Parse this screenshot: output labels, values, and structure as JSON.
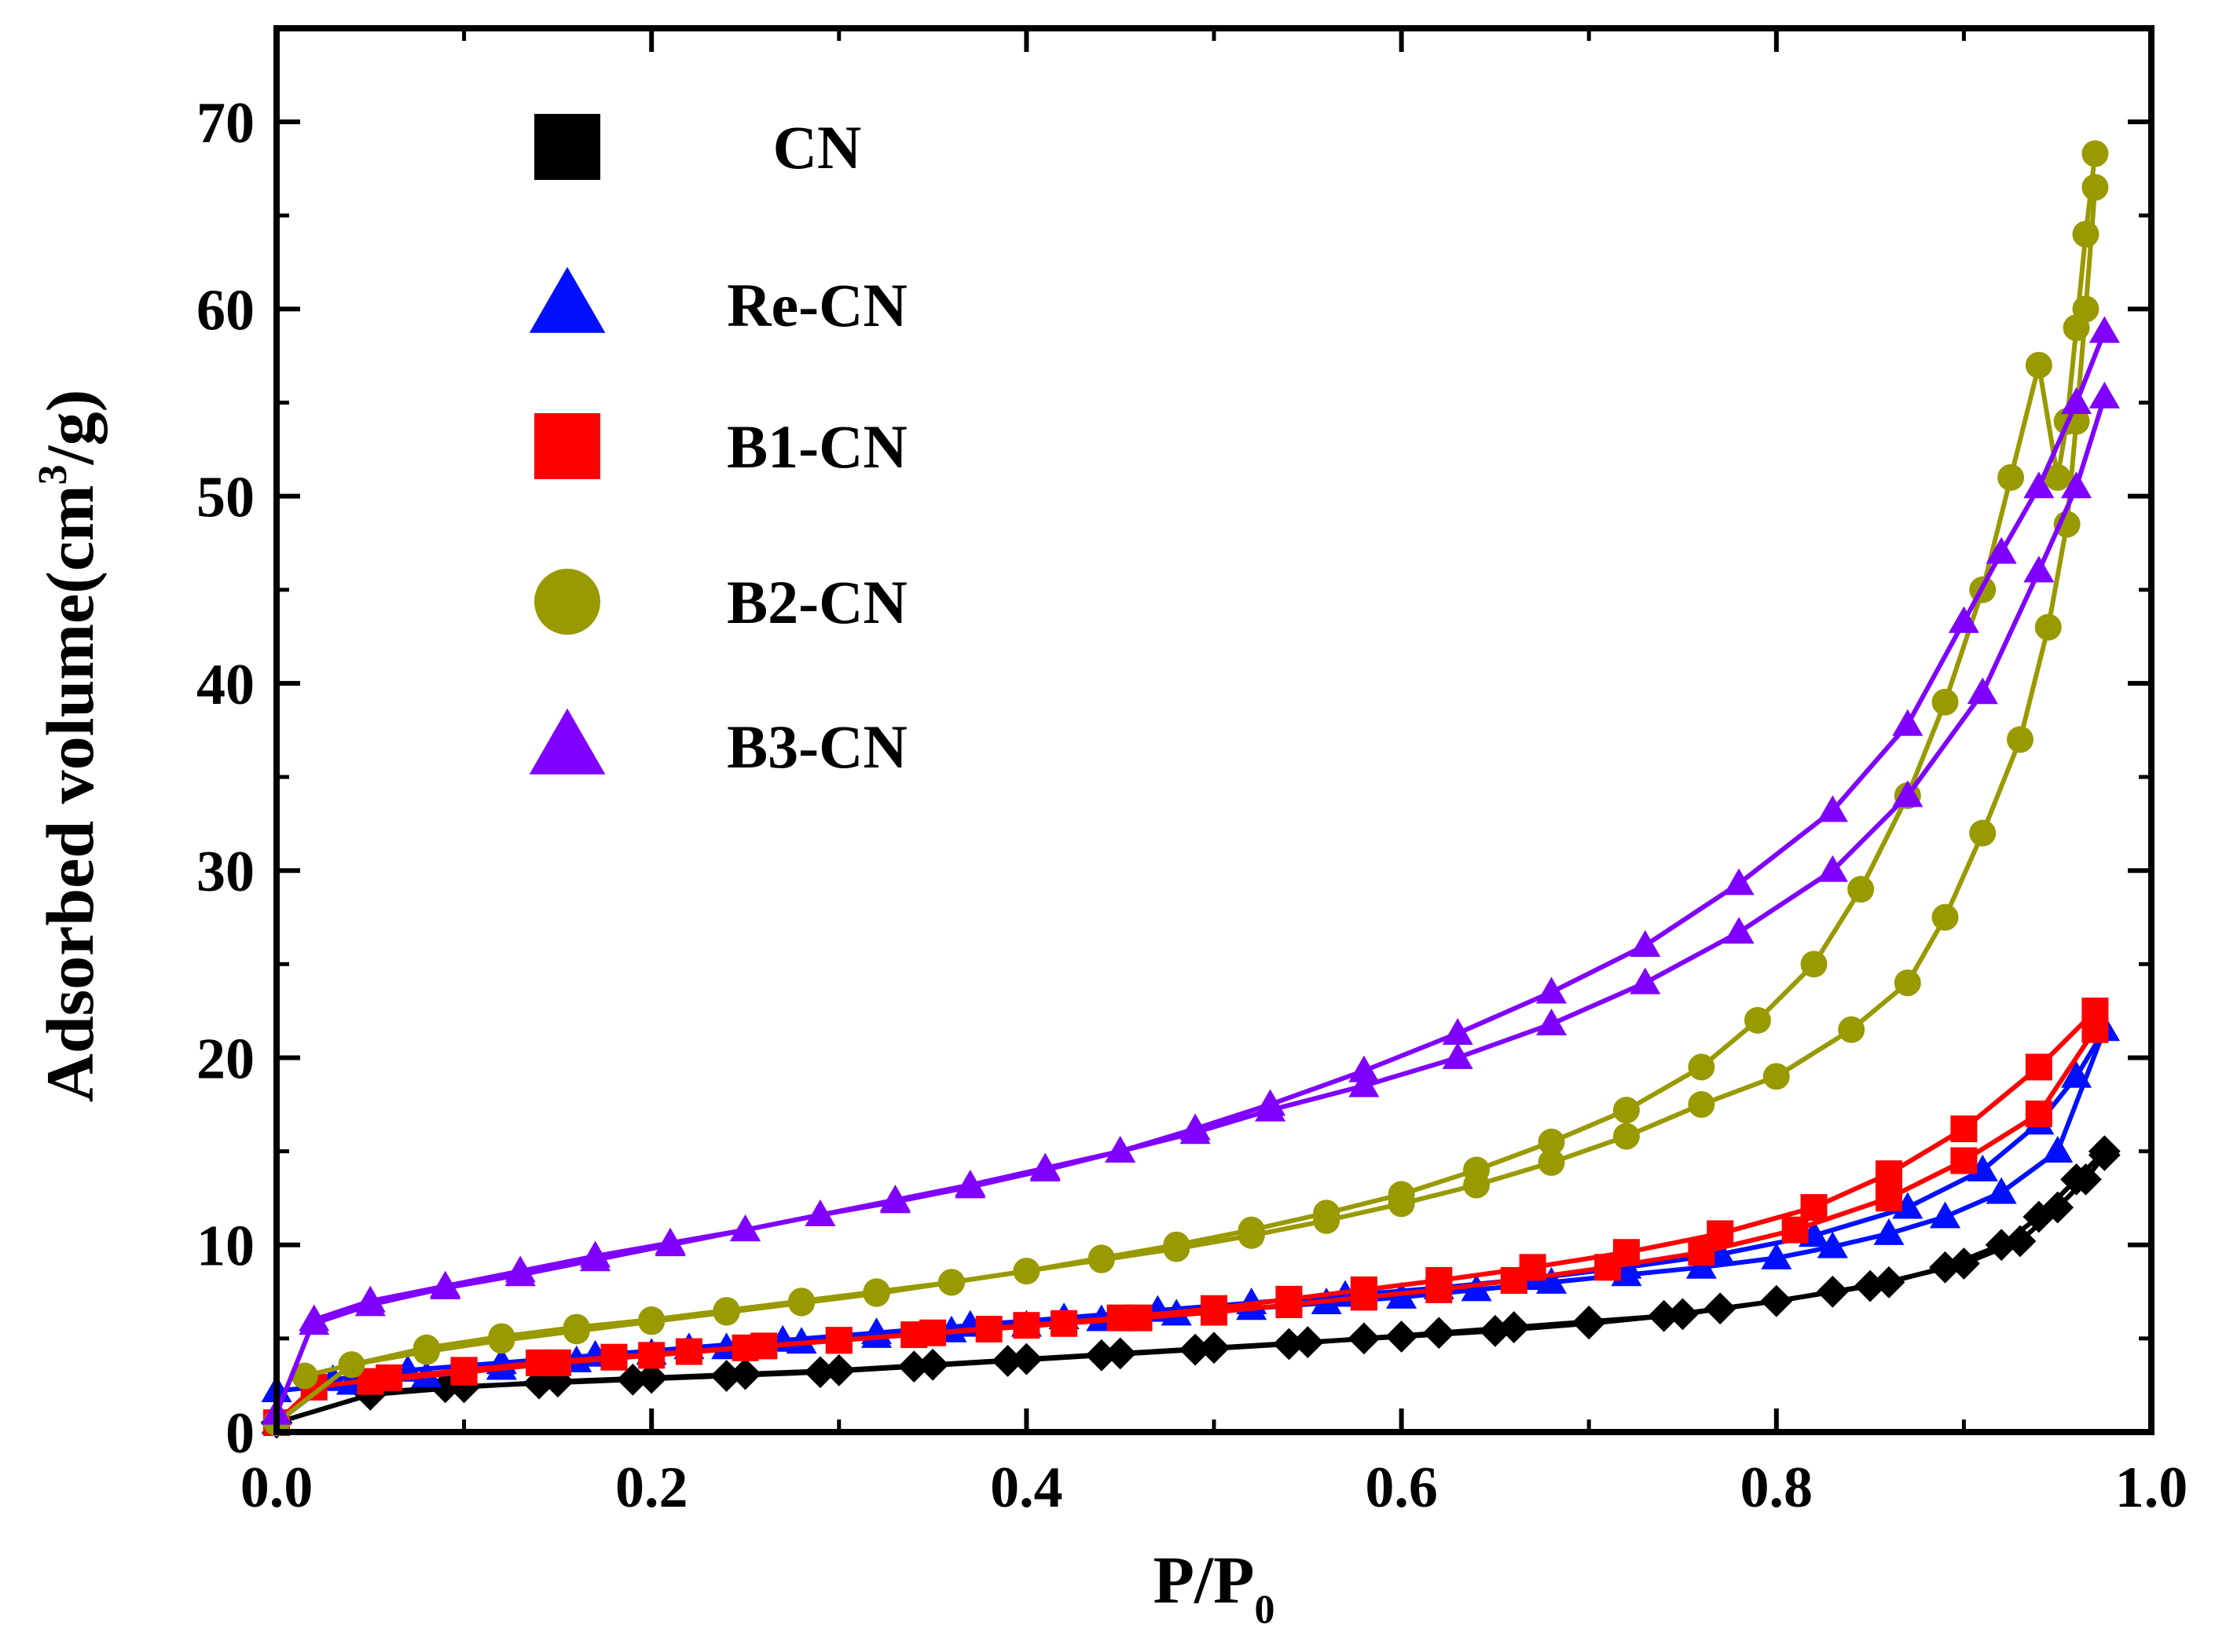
{
  "chart_data": {
    "type": "line",
    "title": "",
    "xlabel": "P/P",
    "xlabel_sub": "0",
    "ylabel": "Adsorbed volume(cm",
    "ylabel_sup": "3",
    "ylabel_tail": "/g)",
    "xlim": [
      0.0,
      1.0
    ],
    "ylim": [
      0,
      75
    ],
    "xticks": [
      0.0,
      0.2,
      0.4,
      0.6,
      0.8,
      1.0
    ],
    "xtick_labels": [
      "0.0",
      "0.2",
      "0.4",
      "0.6",
      "0.8",
      "1.0"
    ],
    "yticks": [
      0,
      10,
      20,
      30,
      40,
      50,
      60,
      70
    ],
    "ytick_labels": [
      "0",
      "10",
      "20",
      "30",
      "40",
      "50",
      "60",
      "70"
    ],
    "legend_position": "top-left",
    "series": [
      {
        "name": "CN",
        "color": "#000000",
        "marker": "diamond",
        "legend_marker": "square",
        "adsorption": {
          "x": [
            0.0,
            0.05,
            0.1,
            0.15,
            0.2,
            0.25,
            0.3,
            0.35,
            0.4,
            0.45,
            0.5,
            0.55,
            0.6,
            0.65,
            0.7,
            0.75,
            0.8,
            0.85,
            0.9,
            0.93,
            0.95,
            0.965,
            0.975
          ],
          "y": [
            0.5,
            2.0,
            2.4,
            2.7,
            2.9,
            3.1,
            3.3,
            3.6,
            3.9,
            4.2,
            4.5,
            4.8,
            5.1,
            5.4,
            5.8,
            6.3,
            7.0,
            7.8,
            9.0,
            10.2,
            12.0,
            13.5,
            14.8
          ]
        },
        "desorption": {
          "x": [
            0.975,
            0.96,
            0.94,
            0.92,
            0.89,
            0.86,
            0.83,
            0.8,
            0.77,
            0.74,
            0.7,
            0.66,
            0.62,
            0.58,
            0.54,
            0.49,
            0.44,
            0.39,
            0.34,
            0.29,
            0.24,
            0.19,
            0.14,
            0.09,
            0.05
          ],
          "y": [
            15.0,
            13.5,
            11.5,
            10.0,
            8.8,
            8.0,
            7.5,
            7.0,
            6.6,
            6.2,
            5.9,
            5.6,
            5.3,
            5.0,
            4.7,
            4.4,
            4.1,
            3.8,
            3.5,
            3.2,
            3.0,
            2.8,
            2.6,
            2.4,
            2.1
          ]
        }
      },
      {
        "name": "Re-CN",
        "color": "#0010ff",
        "marker": "triangle-up",
        "legend_marker": "triangle-up",
        "adsorption": {
          "x": [
            0.0,
            0.03,
            0.07,
            0.12,
            0.17,
            0.22,
            0.27,
            0.32,
            0.37,
            0.42,
            0.47,
            0.52,
            0.57,
            0.62,
            0.67,
            0.72,
            0.77,
            0.82,
            0.87,
            0.91,
            0.94,
            0.96,
            0.975
          ],
          "y": [
            0.5,
            2.8,
            3.3,
            3.7,
            4.1,
            4.5,
            4.9,
            5.3,
            5.7,
            6.1,
            6.5,
            6.9,
            7.3,
            7.7,
            8.2,
            8.8,
            9.5,
            10.5,
            12.0,
            14.0,
            16.5,
            19.0,
            21.5
          ]
        },
        "desorption": {
          "x": [
            0.975,
            0.95,
            0.92,
            0.89,
            0.86,
            0.83,
            0.8,
            0.76,
            0.72,
            0.68,
            0.64,
            0.6,
            0.56,
            0.52,
            0.48,
            0.44,
            0.4,
            0.36,
            0.32,
            0.28,
            0.24,
            0.2,
            0.16,
            0.12,
            0.08,
            0.04,
            0.0
          ],
          "y": [
            21.5,
            15.0,
            12.8,
            11.5,
            10.6,
            9.9,
            9.3,
            8.8,
            8.4,
            8.0,
            7.6,
            7.2,
            6.9,
            6.6,
            6.3,
            6.0,
            5.7,
            5.4,
            5.1,
            4.8,
            4.5,
            4.2,
            3.8,
            3.4,
            3.0,
            2.6,
            2.2
          ]
        }
      },
      {
        "name": "B1-CN",
        "color": "#ff0000",
        "marker": "square",
        "legend_marker": "square",
        "adsorption": {
          "x": [
            0.0,
            0.02,
            0.06,
            0.1,
            0.14,
            0.18,
            0.22,
            0.26,
            0.3,
            0.34,
            0.38,
            0.42,
            0.46,
            0.5,
            0.54,
            0.58,
            0.62,
            0.66,
            0.71,
            0.76,
            0.81,
            0.86,
            0.9,
            0.94,
            0.97
          ],
          "y": [
            0.5,
            2.4,
            2.9,
            3.3,
            3.7,
            4.0,
            4.3,
            4.6,
            4.9,
            5.2,
            5.5,
            5.8,
            6.1,
            6.4,
            6.8,
            7.2,
            7.6,
            8.1,
            8.8,
            9.6,
            10.8,
            12.5,
            14.5,
            17.0,
            21.5
          ]
        },
        "desorption": {
          "x": [
            0.97,
            0.94,
            0.9,
            0.86,
            0.82,
            0.77,
            0.72,
            0.67,
            0.62,
            0.58,
            0.54,
            0.5,
            0.45,
            0.4,
            0.35,
            0.3,
            0.25,
            0.2,
            0.15,
            0.1,
            0.05
          ],
          "y": [
            22.5,
            19.5,
            16.2,
            13.8,
            12.0,
            10.6,
            9.6,
            8.8,
            8.1,
            7.6,
            7.1,
            6.6,
            6.1,
            5.7,
            5.3,
            4.9,
            4.5,
            4.1,
            3.7,
            3.2,
            2.7
          ]
        }
      },
      {
        "name": "B2-CN",
        "color": "#999900",
        "marker": "circle",
        "legend_marker": "circle",
        "adsorption": {
          "x": [
            0.0,
            0.04,
            0.08,
            0.12,
            0.16,
            0.2,
            0.24,
            0.28,
            0.32,
            0.36,
            0.4,
            0.44,
            0.48,
            0.52,
            0.56,
            0.6,
            0.64,
            0.68,
            0.72,
            0.76,
            0.8,
            0.84,
            0.87,
            0.89,
            0.91,
            0.93,
            0.945,
            0.955,
            0.96,
            0.965,
            0.97
          ],
          "y": [
            0.5,
            3.6,
            4.5,
            5.1,
            5.6,
            6.0,
            6.5,
            7.0,
            7.5,
            8.0,
            8.6,
            9.2,
            9.8,
            10.5,
            11.3,
            12.2,
            13.2,
            14.4,
            15.8,
            17.5,
            19.0,
            21.5,
            24.0,
            27.5,
            32.0,
            37.0,
            43.0,
            48.5,
            54.0,
            60.0,
            66.5
          ]
        },
        "desorption": {
          "x": [
            0.97,
            0.965,
            0.96,
            0.955,
            0.95,
            0.94,
            0.925,
            0.91,
            0.89,
            0.87,
            0.845,
            0.82,
            0.79,
            0.76,
            0.72,
            0.68,
            0.64,
            0.6,
            0.56,
            0.52,
            0.48,
            0.44,
            0.4,
            0.36,
            0.32,
            0.28,
            0.24,
            0.2,
            0.16,
            0.12,
            0.08,
            0.04,
            0.015
          ],
          "y": [
            68.3,
            64.0,
            59.0,
            54.0,
            51.0,
            57.0,
            51.0,
            45.0,
            39.0,
            34.0,
            29.0,
            25.0,
            22.0,
            19.5,
            17.2,
            15.5,
            14.0,
            12.7,
            11.7,
            10.8,
            10.0,
            9.3,
            8.6,
            8.0,
            7.4,
            6.9,
            6.4,
            5.9,
            5.4,
            4.9,
            4.3,
            3.6,
            3.0
          ]
        }
      },
      {
        "name": "B3-CN",
        "color": "#8000ff",
        "marker": "triangle-up",
        "legend_marker": "triangle-up",
        "adsorption": {
          "x": [
            0.0,
            0.02,
            0.05,
            0.09,
            0.13,
            0.17,
            0.21,
            0.25,
            0.29,
            0.33,
            0.37,
            0.41,
            0.45,
            0.49,
            0.53,
            0.58,
            0.63,
            0.68,
            0.73,
            0.78,
            0.83,
            0.87,
            0.9,
            0.92,
            0.94,
            0.96,
            0.975
          ],
          "y": [
            1.0,
            6.0,
            7.0,
            7.8,
            8.6,
            9.4,
            10.1,
            10.8,
            11.6,
            12.3,
            13.1,
            14.0,
            15.0,
            16.2,
            17.5,
            19.3,
            21.3,
            23.5,
            26.0,
            29.3,
            33.2,
            37.8,
            43.3,
            47.0,
            50.5,
            55.0,
            58.8
          ]
        },
        "desorption": {
          "x": [
            0.975,
            0.96,
            0.94,
            0.91,
            0.87,
            0.83,
            0.78,
            0.73,
            0.68,
            0.63,
            0.58,
            0.53,
            0.49,
            0.45,
            0.41,
            0.37,
            0.33,
            0.29,
            0.25,
            0.21,
            0.17,
            0.13,
            0.09,
            0.05,
            0.02
          ],
          "y": [
            55.3,
            50.5,
            46.0,
            39.5,
            34.0,
            30.0,
            26.7,
            24.0,
            21.8,
            20.0,
            18.5,
            17.2,
            16.0,
            15.0,
            14.1,
            13.2,
            12.4,
            11.6,
            10.8,
            10.0,
            9.2,
            8.4,
            7.7,
            6.8,
            5.8
          ]
        }
      }
    ]
  }
}
